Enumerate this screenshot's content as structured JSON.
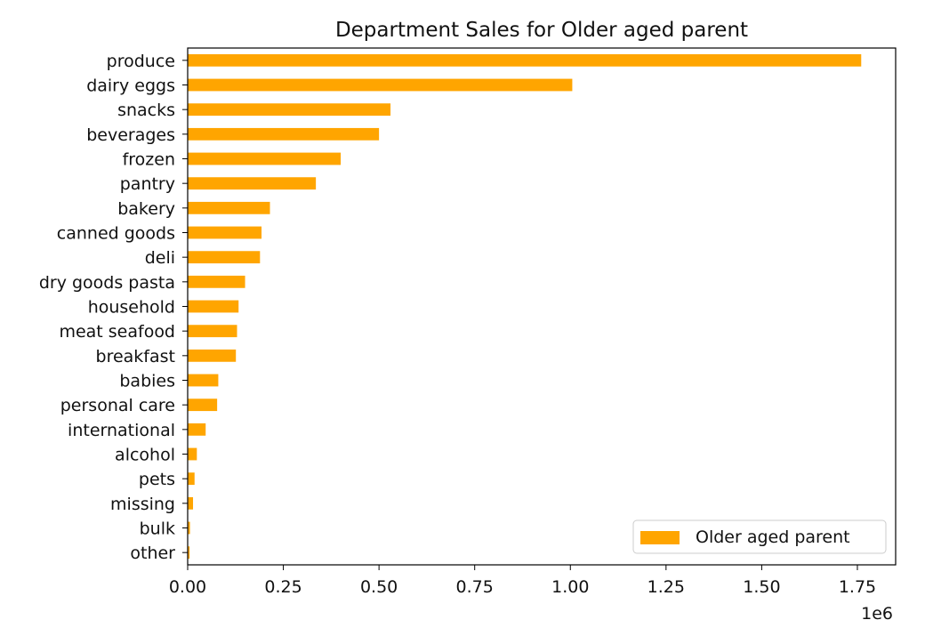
{
  "chart_data": {
    "type": "bar",
    "orientation": "horizontal",
    "title": "Department Sales for Older aged parent",
    "xlabel": "",
    "ylabel": "",
    "x_scale_label": "1e6",
    "xlim": [
      0,
      1850000
    ],
    "x_ticks": [
      0,
      250000,
      500000,
      750000,
      1000000,
      1250000,
      1500000,
      1750000
    ],
    "x_tick_labels": [
      "0.00",
      "0.25",
      "0.50",
      "0.75",
      "1.00",
      "1.25",
      "1.50",
      "1.75"
    ],
    "grid": false,
    "legend_position": "lower-right",
    "color": "#ffa500",
    "categories": [
      "produce",
      "dairy eggs",
      "snacks",
      "beverages",
      "frozen",
      "pantry",
      "bakery",
      "canned goods",
      "deli",
      "dry goods pasta",
      "household",
      "meat seafood",
      "breakfast",
      "babies",
      "personal care",
      "international",
      "alcohol",
      "pets",
      "missing",
      "bulk",
      "other"
    ],
    "series": [
      {
        "name": "Older aged parent",
        "values": [
          1760000,
          1005000,
          530000,
          500000,
          400000,
          335000,
          215000,
          193000,
          189000,
          150000,
          133000,
          129000,
          126000,
          80000,
          77000,
          47000,
          24000,
          18000,
          14000,
          6000,
          5000
        ]
      }
    ]
  }
}
